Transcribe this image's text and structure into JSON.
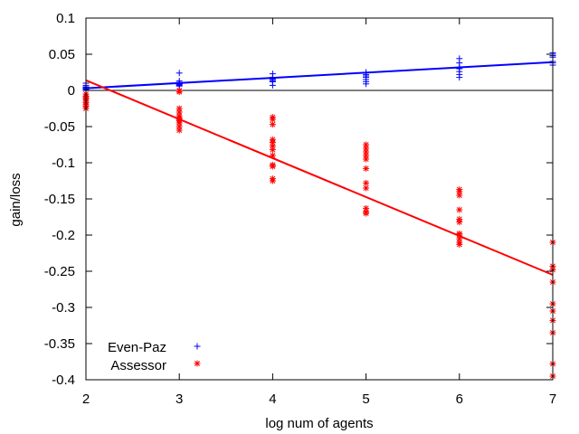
{
  "chart_data": {
    "type": "scatter",
    "xlabel": "log num of agents",
    "ylabel": "gain/loss",
    "xlim": [
      2,
      7
    ],
    "ylim": [
      -0.4,
      0.1
    ],
    "x_ticks": [
      2,
      3,
      4,
      5,
      6,
      7
    ],
    "y_ticks": [
      0.1,
      0.05,
      0,
      -0.05,
      -0.1,
      -0.15,
      -0.2,
      -0.25,
      -0.3,
      -0.35,
      -0.4
    ],
    "x_tick_labels": [
      "2",
      "3",
      "4",
      "5",
      "6",
      "7"
    ],
    "y_tick_labels": [
      "0.1",
      "0.05",
      "0",
      "-0.05",
      "-0.1",
      "-0.15",
      "-0.2",
      "-0.25",
      "-0.3",
      "-0.35",
      "-0.4"
    ],
    "zero_line": true,
    "grid": false,
    "legend_position": "bottom-left",
    "series": [
      {
        "name": "Even-Paz",
        "marker": "+",
        "color": "#0000ff",
        "points": [
          [
            2,
            0.01
          ],
          [
            2,
            0.007
          ],
          [
            2,
            0.005
          ],
          [
            2,
            0.004
          ],
          [
            2,
            0.003
          ],
          [
            2,
            0.002
          ],
          [
            2,
            0.001
          ],
          [
            2,
            0.0
          ],
          [
            3,
            0.024
          ],
          [
            3,
            0.013
          ],
          [
            3,
            0.011
          ],
          [
            3,
            0.01
          ],
          [
            3,
            0.009
          ],
          [
            3,
            0.008
          ],
          [
            3,
            0.007
          ],
          [
            3,
            0.006
          ],
          [
            4,
            0.023
          ],
          [
            4,
            0.018
          ],
          [
            4,
            0.016
          ],
          [
            4,
            0.015
          ],
          [
            4,
            0.013
          ],
          [
            4,
            0.012
          ],
          [
            4,
            0.007
          ],
          [
            5,
            0.025
          ],
          [
            5,
            0.022
          ],
          [
            5,
            0.02
          ],
          [
            5,
            0.018
          ],
          [
            5,
            0.015
          ],
          [
            5,
            0.012
          ],
          [
            5,
            0.009
          ],
          [
            6,
            0.044
          ],
          [
            6,
            0.038
          ],
          [
            6,
            0.032
          ],
          [
            6,
            0.03
          ],
          [
            6,
            0.026
          ],
          [
            6,
            0.022
          ],
          [
            6,
            0.018
          ],
          [
            7,
            0.052
          ],
          [
            7,
            0.05
          ],
          [
            7,
            0.048
          ],
          [
            7,
            0.046
          ],
          [
            7,
            0.04
          ],
          [
            7,
            0.038
          ],
          [
            7,
            0.035
          ]
        ],
        "fit": [
          [
            2,
            0.003
          ],
          [
            7,
            0.039
          ]
        ]
      },
      {
        "name": "Assessor",
        "marker": "*",
        "color": "#ff0000",
        "points": [
          [
            2,
            -0.005
          ],
          [
            2,
            -0.008
          ],
          [
            2,
            -0.01
          ],
          [
            2,
            -0.012
          ],
          [
            2,
            -0.015
          ],
          [
            2,
            -0.017
          ],
          [
            2,
            -0.02
          ],
          [
            2,
            -0.022
          ],
          [
            2,
            -0.025
          ],
          [
            3,
            0.0
          ],
          [
            3,
            -0.002
          ],
          [
            3,
            -0.025
          ],
          [
            3,
            -0.03
          ],
          [
            3,
            -0.035
          ],
          [
            3,
            -0.038
          ],
          [
            3,
            -0.04
          ],
          [
            3,
            -0.042
          ],
          [
            3,
            -0.045
          ],
          [
            3,
            -0.05
          ],
          [
            3,
            -0.055
          ],
          [
            4,
            -0.037
          ],
          [
            4,
            -0.04
          ],
          [
            4,
            -0.047
          ],
          [
            4,
            -0.068
          ],
          [
            4,
            -0.072
          ],
          [
            4,
            -0.077
          ],
          [
            4,
            -0.082
          ],
          [
            4,
            -0.09
          ],
          [
            4,
            -0.103
          ],
          [
            4,
            -0.105
          ],
          [
            4,
            -0.122
          ],
          [
            4,
            -0.125
          ],
          [
            5,
            -0.075
          ],
          [
            5,
            -0.08
          ],
          [
            5,
            -0.085
          ],
          [
            5,
            -0.09
          ],
          [
            5,
            -0.095
          ],
          [
            5,
            -0.108
          ],
          [
            5,
            -0.128
          ],
          [
            5,
            -0.135
          ],
          [
            5,
            -0.163
          ],
          [
            5,
            -0.168
          ],
          [
            5,
            -0.17
          ],
          [
            6,
            -0.137
          ],
          [
            6,
            -0.14
          ],
          [
            6,
            -0.145
          ],
          [
            6,
            -0.165
          ],
          [
            6,
            -0.178
          ],
          [
            6,
            -0.182
          ],
          [
            6,
            -0.198
          ],
          [
            6,
            -0.2
          ],
          [
            6,
            -0.205
          ],
          [
            6,
            -0.21
          ],
          [
            6,
            -0.213
          ],
          [
            7,
            -0.21
          ],
          [
            7,
            -0.243
          ],
          [
            7,
            -0.248
          ],
          [
            7,
            -0.265
          ],
          [
            7,
            -0.295
          ],
          [
            7,
            -0.305
          ],
          [
            7,
            -0.318
          ],
          [
            7,
            -0.335
          ],
          [
            7,
            -0.378
          ],
          [
            7,
            -0.395
          ]
        ],
        "fit": [
          [
            2,
            0.014
          ],
          [
            7,
            -0.255
          ]
        ]
      }
    ]
  }
}
